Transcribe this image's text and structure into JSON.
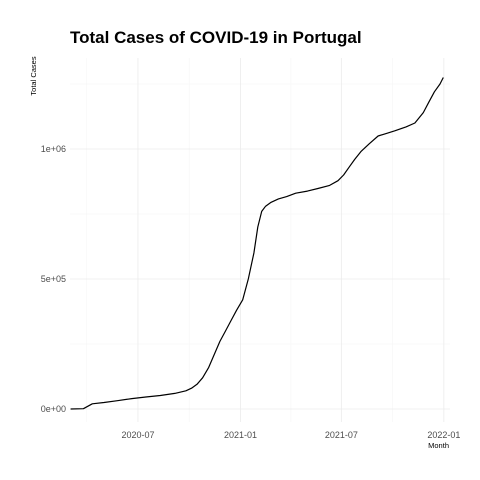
{
  "chart_data": {
    "type": "line",
    "title": "Total Cases of COVID-19 in Portugal",
    "xlabel": "Month",
    "ylabel": "Total Cases",
    "x_ticks": [
      "2020-07",
      "2021-01",
      "2021-07",
      "2022-01"
    ],
    "y_ticks": [
      "0e+00",
      "5e+05",
      "1e+06"
    ],
    "y_tick_values": [
      0,
      500000,
      1000000
    ],
    "xlim": [
      "2020-03-01",
      "2022-01-12"
    ],
    "ylim": [
      -50000,
      1350000
    ],
    "grid": true,
    "legend": "none",
    "x": [
      "2020-03-02",
      "2020-03-25",
      "2020-04-10",
      "2020-05-01",
      "2020-05-25",
      "2020-06-20",
      "2020-07-15",
      "2020-08-10",
      "2020-09-05",
      "2020-09-25",
      "2020-10-05",
      "2020-10-15",
      "2020-10-25",
      "2020-11-05",
      "2020-11-15",
      "2020-11-25",
      "2020-12-05",
      "2020-12-15",
      "2020-12-25",
      "2021-01-05",
      "2021-01-15",
      "2021-01-25",
      "2021-02-01",
      "2021-02-08",
      "2021-02-15",
      "2021-02-25",
      "2021-03-10",
      "2021-03-25",
      "2021-04-10",
      "2021-05-01",
      "2021-05-20",
      "2021-06-10",
      "2021-06-25",
      "2021-07-05",
      "2021-07-15",
      "2021-07-25",
      "2021-08-05",
      "2021-08-20",
      "2021-09-05",
      "2021-09-20",
      "2021-10-05",
      "2021-10-25",
      "2021-11-10",
      "2021-11-25",
      "2021-12-05",
      "2021-12-15",
      "2021-12-25",
      "2021-12-31"
    ],
    "y": [
      0,
      1000,
      20000,
      25000,
      32000,
      40000,
      46000,
      52000,
      60000,
      70000,
      80000,
      95000,
      120000,
      160000,
      210000,
      260000,
      300000,
      340000,
      380000,
      420000,
      500000,
      600000,
      700000,
      760000,
      780000,
      795000,
      808000,
      817000,
      830000,
      838000,
      848000,
      860000,
      878000,
      900000,
      930000,
      960000,
      990000,
      1020000,
      1050000,
      1060000,
      1070000,
      1085000,
      1100000,
      1140000,
      1180000,
      1220000,
      1250000,
      1275000
    ]
  }
}
